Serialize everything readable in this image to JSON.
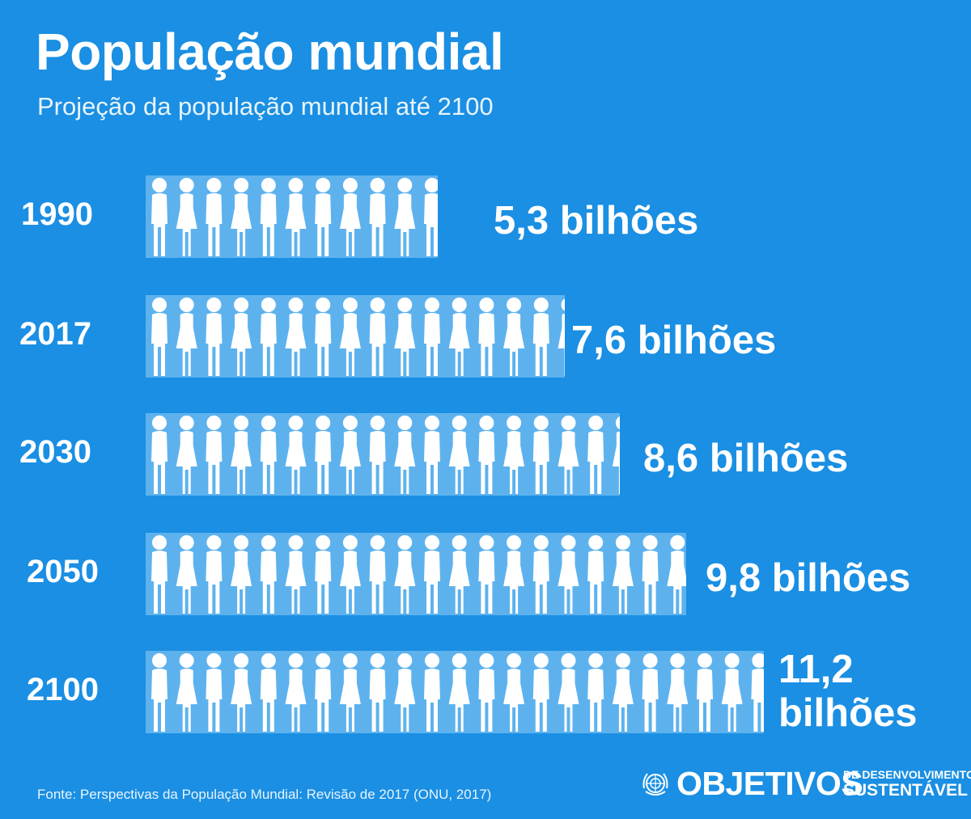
{
  "title": "População mundial",
  "subtitle": "Projeção da população mundial até 2100",
  "source": "Fonte: Perspectivas da População Mundial: Revisão de 2017 (ONU, 2017)",
  "logo": {
    "main": "OBJETIVOS",
    "line1": "DE DESENVOLVIMENTO",
    "line2": "SUSTENTÁVEL"
  },
  "colors": {
    "background": "#1a8fe3",
    "band": "#5db2ee",
    "figure": "#ffffff"
  },
  "chart_data": {
    "type": "bar",
    "categories": [
      "1990",
      "2017",
      "2030",
      "2050",
      "2100"
    ],
    "values": [
      5.3,
      7.6,
      8.6,
      9.8,
      11.2
    ],
    "value_labels": [
      "5,3 bilhões",
      "7,6 bilhões",
      "8,6 bilhões",
      "9,8 bilhões",
      "11,2 bilhões"
    ],
    "unit": "bilhões",
    "title": "População mundial",
    "subtitle": "Projeção da população mundial até 2100",
    "grid": false,
    "legend": "none"
  }
}
